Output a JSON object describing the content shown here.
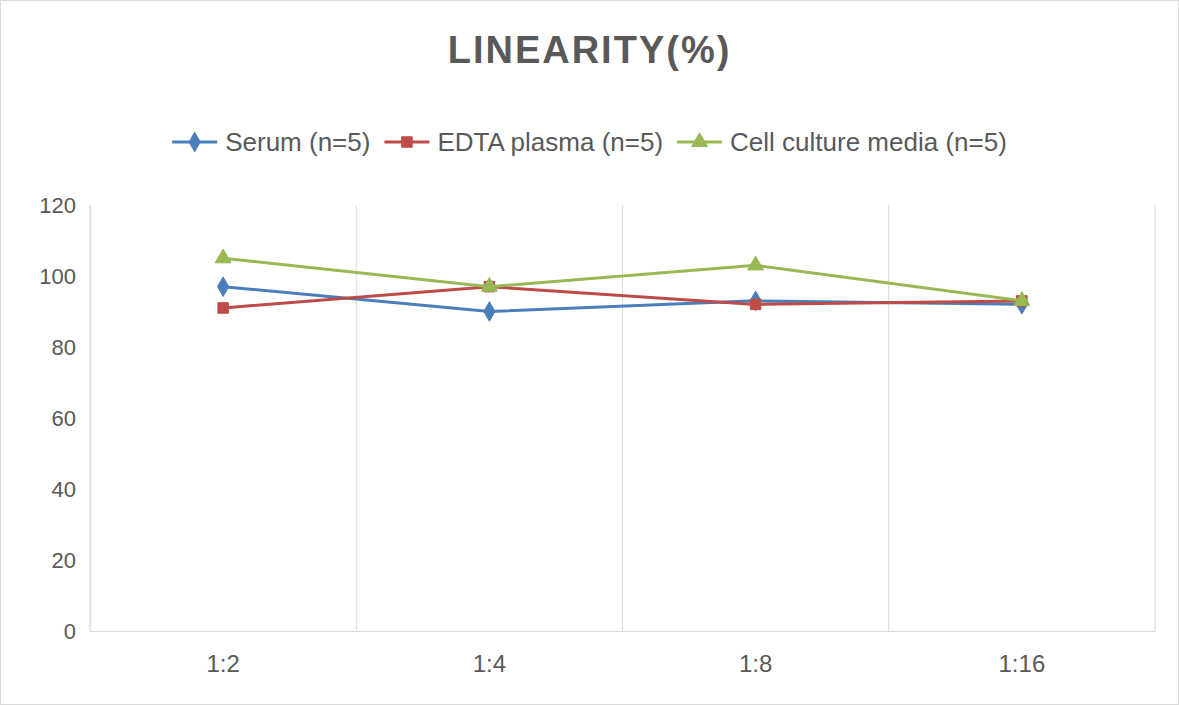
{
  "chart_data": {
    "type": "line",
    "title": "LINEARITY(%)",
    "categories": [
      "1:2",
      "1:4",
      "1:8",
      "1:16"
    ],
    "series": [
      {
        "name": "Serum (n=5)",
        "color": "#4a7ebb",
        "marker": "diamond",
        "line_style": "solid",
        "values": [
          97,
          90,
          93,
          92
        ]
      },
      {
        "name": "EDTA plasma (n=5)",
        "color": "#be4b48",
        "marker": "square",
        "line_style": "solid",
        "values": [
          91,
          97,
          92,
          93
        ]
      },
      {
        "name": "Cell culture media (n=5)",
        "color": "#98b954",
        "marker": "triangle",
        "line_style": "solid",
        "values": [
          105,
          97,
          103,
          93
        ]
      }
    ],
    "ylim": [
      0,
      120
    ],
    "yticks": [
      0,
      20,
      40,
      60,
      80,
      100,
      120
    ],
    "grid": true,
    "legend": "top"
  }
}
